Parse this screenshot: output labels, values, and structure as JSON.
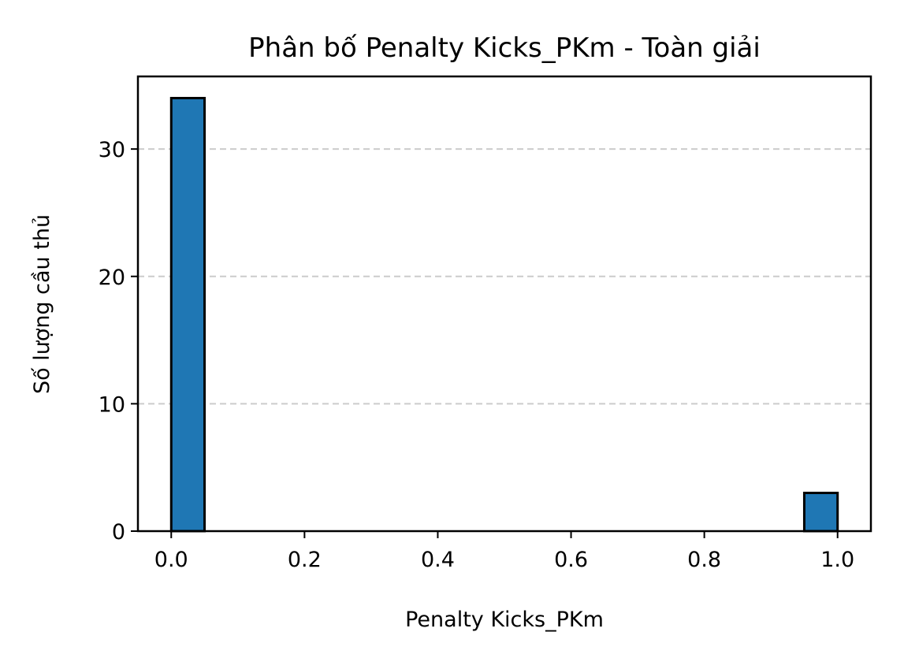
{
  "chart_data": {
    "type": "bar",
    "title": "Phân bố Penalty Kicks_PKm - Toàn giải",
    "xlabel": "Penalty Kicks_PKm",
    "ylabel": "Số lượng cầu thủ",
    "xlim": [
      -0.05,
      1.05
    ],
    "ylim": [
      0,
      35.7
    ],
    "grid": "y-dashed",
    "bar_color": "#1f77b4",
    "edge_color": "#000000",
    "grid_color": "#cccccc",
    "bins": [
      {
        "x0": 0.0,
        "x1": 0.05,
        "count": 34
      },
      {
        "x0": 0.95,
        "x1": 1.0,
        "count": 3
      }
    ],
    "xticks": [
      {
        "value": 0.0,
        "label": "0.0"
      },
      {
        "value": 0.2,
        "label": "0.2"
      },
      {
        "value": 0.4,
        "label": "0.4"
      },
      {
        "value": 0.6,
        "label": "0.6"
      },
      {
        "value": 0.8,
        "label": "0.8"
      },
      {
        "value": 1.0,
        "label": "1.0"
      }
    ],
    "yticks": [
      {
        "value": 0,
        "label": "0"
      },
      {
        "value": 10,
        "label": "10"
      },
      {
        "value": 20,
        "label": "20"
      },
      {
        "value": 30,
        "label": "30"
      }
    ]
  }
}
